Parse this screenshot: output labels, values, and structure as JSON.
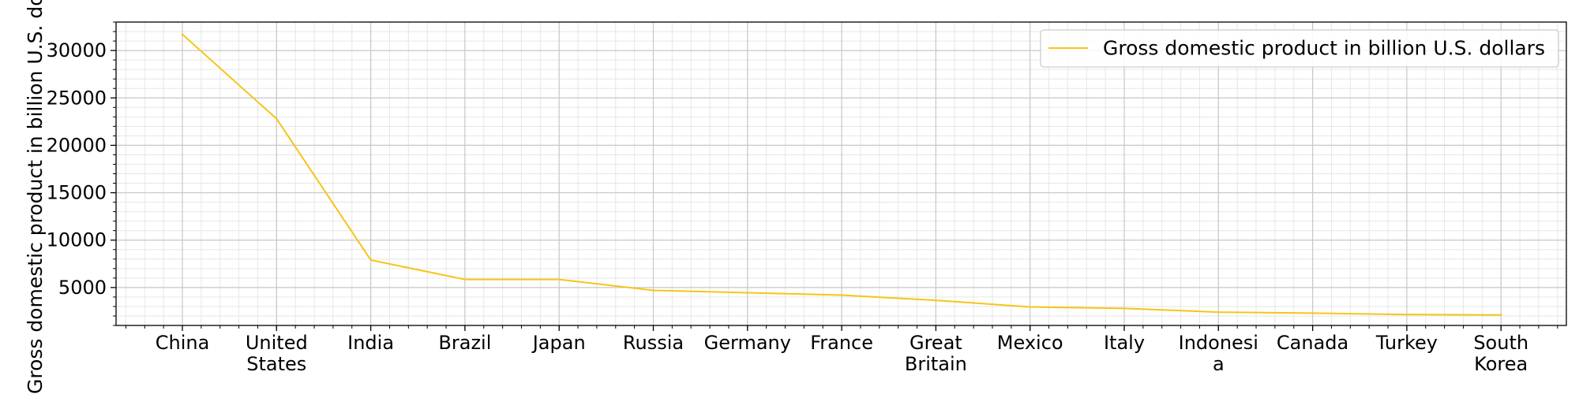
{
  "chart_data": {
    "type": "line",
    "categories": [
      "China",
      "United\nStates",
      "India",
      "Brazil",
      "Japan",
      "Russia",
      "Germany",
      "France",
      "Great\nBritain",
      "Mexico",
      "Italy",
      "Indonesi\na",
      "Canada",
      "Turkey",
      "South\nKorea"
    ],
    "series": [
      {
        "name": "Gross domestic product in billion U.S. dollars",
        "values": [
          31700,
          22800,
          7900,
          5850,
          5850,
          4700,
          4450,
          4200,
          3650,
          2950,
          2800,
          2400,
          2300,
          2150,
          2100
        ]
      }
    ],
    "title": "",
    "xlabel": "",
    "ylabel": "Gross domestic product in billion U.S. dollars",
    "ylim": [
      1000,
      33000
    ],
    "yticks": [
      5000,
      10000,
      15000,
      20000,
      25000,
      30000
    ],
    "grid": true,
    "minor_grid": true,
    "legend_position": "top-right",
    "line_color": "#f5c518"
  }
}
